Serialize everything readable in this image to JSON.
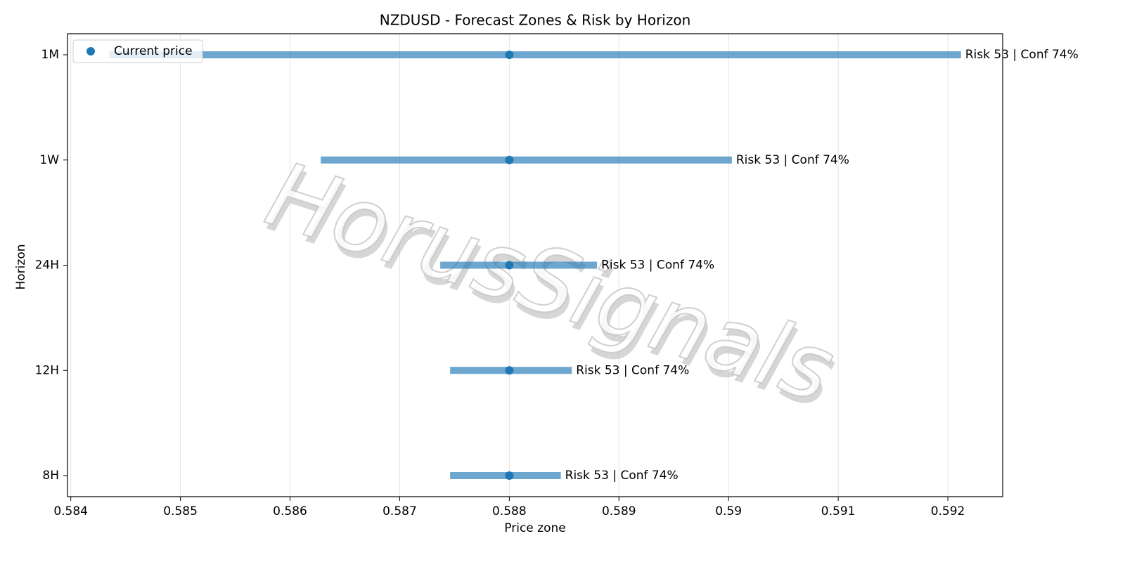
{
  "chart_data": {
    "type": "range",
    "title": "NZDUSD - Forecast Zones & Risk by Horizon",
    "xlabel": "Price zone",
    "ylabel": "Horizon",
    "categories": [
      "1M",
      "1W",
      "24H",
      "12H",
      "8H"
    ],
    "low": [
      0.58435,
      0.58628,
      0.58737,
      0.58746,
      0.58746
    ],
    "high": [
      0.59212,
      0.59003,
      0.5888,
      0.58857,
      0.58847
    ],
    "zone_color": "#1f77b4",
    "series": [
      {
        "name": "Current price",
        "color": "#1f77b4",
        "values": [
          0.588,
          0.588,
          0.588,
          0.588,
          0.588
        ]
      }
    ],
    "labels": [
      "Risk 53 | Conf 74%",
      "Risk 53 | Conf 74%",
      "Risk 53 | Conf 74%",
      "Risk 53 | Conf 74%",
      "Risk 53 | Conf 74%"
    ],
    "xlim": [
      0.58397,
      0.5925
    ],
    "xticks": [
      0.584,
      0.585,
      0.586,
      0.587,
      0.588,
      0.589,
      0.59,
      0.591,
      0.592
    ],
    "grid": true,
    "legend": "upper left",
    "watermark": "HorusSignals"
  }
}
